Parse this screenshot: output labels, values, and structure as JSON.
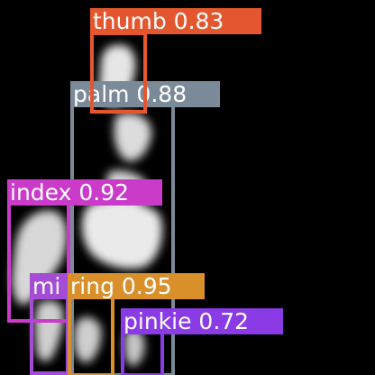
{
  "detections": [
    {
      "label": "thumb 0.83",
      "class_name": "thumb",
      "confidence": 0.83,
      "color": "#E4572E"
    },
    {
      "label": "palm 0.88",
      "class_name": "palm",
      "confidence": 0.88,
      "color": "#7B8A99"
    },
    {
      "label": "index 0.92",
      "class_name": "index",
      "confidence": 0.92,
      "color": "#C93BC8"
    },
    {
      "label": "mi",
      "class_name": "mi",
      "color": "#A54CD6"
    },
    {
      "label": "ring 0.95",
      "class_name": "ring",
      "confidence": 0.95,
      "color": "#D9902A"
    },
    {
      "label": "pinkie 0.72",
      "class_name": "pinkie",
      "confidence": 0.72,
      "color": "#8A3BE6"
    }
  ],
  "background_color": "#000000",
  "hand_mask_color": "#e8e8e8"
}
